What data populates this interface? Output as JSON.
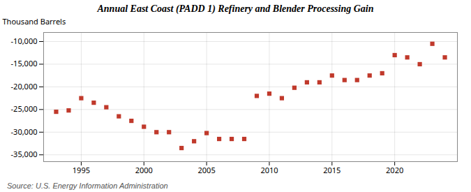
{
  "chart_data": {
    "type": "scatter",
    "title": "Annual East Coast (PADD 1) Refinery and Blender Processing Gain",
    "ylabel": "Thousand Barrels",
    "source": "Source: U.S. Energy Information Administration",
    "x": [
      1993,
      1994,
      1995,
      1996,
      1997,
      1998,
      1999,
      2000,
      2001,
      2002,
      2003,
      2004,
      2005,
      2006,
      2007,
      2008,
      2009,
      2010,
      2011,
      2012,
      2013,
      2014,
      2015,
      2016,
      2017,
      2018,
      2019,
      2020,
      2021,
      2022,
      2023,
      2024
    ],
    "values": [
      -25500,
      -25200,
      -22500,
      -23500,
      -24500,
      -26500,
      -27500,
      -28800,
      -30000,
      -30000,
      -33500,
      -32000,
      -30200,
      -31500,
      -31500,
      -31500,
      -22000,
      -21500,
      -22500,
      -20200,
      -19000,
      -19000,
      -17500,
      -18500,
      -18500,
      -17500,
      -17000,
      -13000,
      -13500,
      -15000,
      -10500,
      -13500
    ],
    "color": "#c0392b",
    "marker": "square",
    "xlim": [
      1992.0,
      2025.0
    ],
    "xticks": [
      1995,
      2000,
      2005,
      2010,
      2015,
      2020
    ],
    "ylim": [
      -36500,
      -8000
    ],
    "yticks": [
      {
        "value": -10000,
        "label": "-10,000"
      },
      {
        "value": -15000,
        "label": "-15,000"
      },
      {
        "value": -20000,
        "label": "-20,000"
      },
      {
        "value": -25000,
        "label": "-25,000"
      },
      {
        "value": -30000,
        "label": "-30,000"
      },
      {
        "value": -35000,
        "label": "-35,000"
      }
    ],
    "grid": true
  }
}
